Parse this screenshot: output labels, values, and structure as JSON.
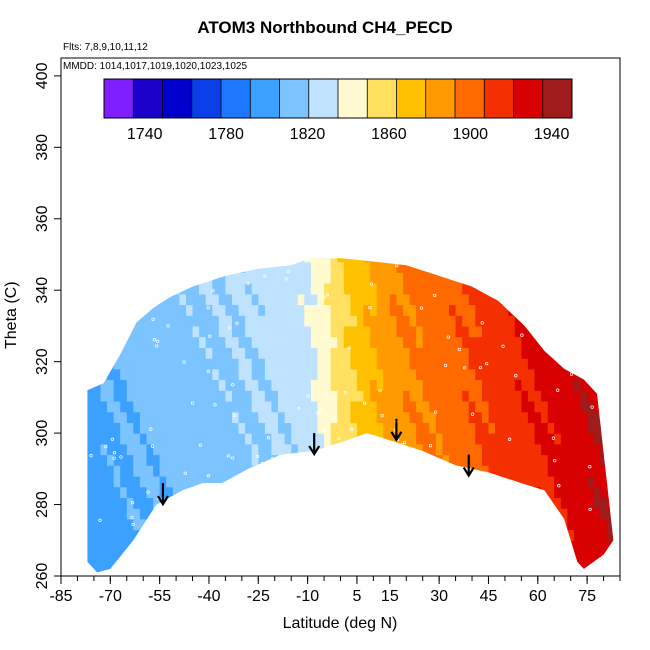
{
  "chart_data": {
    "type": "heatmap",
    "title": "ATOM3 Northbound CH4_PECD",
    "flights_note": "Flts: 7,8,9,10,11,12",
    "mmdd_note": "MMDD: 1014,1017,1019,1020,1023,1025",
    "xlabel": "Latitude (deg N)",
    "ylabel": "Theta (C)",
    "xlim": [
      -85,
      85
    ],
    "ylim": [
      260,
      405
    ],
    "x_ticks": [
      -85,
      -70,
      -55,
      -40,
      -25,
      -10,
      5,
      15,
      30,
      45,
      60,
      75
    ],
    "y_ticks": [
      260,
      280,
      300,
      320,
      340,
      360,
      380,
      400
    ],
    "colorbar": {
      "range": [
        1720,
        1950
      ],
      "tick_values": [
        1740,
        1780,
        1820,
        1860,
        1900,
        1940
      ],
      "tick_labels": [
        "1740",
        "1780",
        "1820",
        "1860",
        "1900",
        "1940"
      ],
      "colors": [
        "#7f1fff",
        "#1a00c8",
        "#0000cc",
        "#0a3ee6",
        "#1e78ff",
        "#3ca0ff",
        "#7cc4ff",
        "#bfe2ff",
        "#fffad0",
        "#ffe060",
        "#ffc000",
        "#ff9a00",
        "#ff6a00",
        "#f53000",
        "#d80000",
        "#a01c1c"
      ]
    },
    "upper_boundary": [
      [
        -77,
        312
      ],
      [
        -72,
        314
      ],
      [
        -67,
        322
      ],
      [
        -62,
        331
      ],
      [
        -57,
        335
      ],
      [
        -52,
        338
      ],
      [
        -45,
        341
      ],
      [
        -35,
        344
      ],
      [
        -25,
        346
      ],
      [
        -15,
        347
      ],
      [
        -9,
        349
      ],
      [
        0,
        349
      ],
      [
        10,
        348
      ],
      [
        20,
        347
      ],
      [
        30,
        344
      ],
      [
        40,
        341
      ],
      [
        48,
        337
      ],
      [
        56,
        330
      ],
      [
        62,
        323
      ],
      [
        68,
        318
      ],
      [
        74,
        315
      ],
      [
        78,
        311
      ]
    ],
    "lower_boundary": [
      [
        -77,
        264
      ],
      [
        -74,
        261
      ],
      [
        -70,
        262
      ],
      [
        -63,
        270
      ],
      [
        -56,
        280
      ],
      [
        -48,
        284
      ],
      [
        -42,
        286
      ],
      [
        -36,
        286
      ],
      [
        -28,
        290
      ],
      [
        -18,
        294
      ],
      [
        -8,
        295
      ],
      [
        2,
        298
      ],
      [
        8,
        300
      ],
      [
        15,
        298
      ],
      [
        25,
        295
      ],
      [
        35,
        291
      ],
      [
        45,
        289
      ],
      [
        55,
        286
      ],
      [
        62,
        284
      ],
      [
        68,
        276
      ],
      [
        72,
        264
      ],
      [
        74,
        262
      ],
      [
        80,
        266
      ],
      [
        83,
        270
      ]
    ],
    "field_profile": [
      [
        -80,
        1800
      ],
      [
        -70,
        1805
      ],
      [
        -60,
        1810
      ],
      [
        -50,
        1812
      ],
      [
        -40,
        1815
      ],
      [
        -30,
        1818
      ],
      [
        -20,
        1822
      ],
      [
        -10,
        1828
      ],
      [
        -5,
        1840
      ],
      [
        0,
        1855
      ],
      [
        5,
        1865
      ],
      [
        10,
        1875
      ],
      [
        15,
        1885
      ],
      [
        25,
        1893
      ],
      [
        35,
        1900
      ],
      [
        45,
        1910
      ],
      [
        55,
        1918
      ],
      [
        65,
        1925
      ],
      [
        75,
        1935
      ],
      [
        82,
        1940
      ]
    ],
    "arrows": [
      [
        -54,
        286
      ],
      [
        -8,
        300
      ],
      [
        17,
        304
      ],
      [
        39,
        294
      ]
    ]
  }
}
